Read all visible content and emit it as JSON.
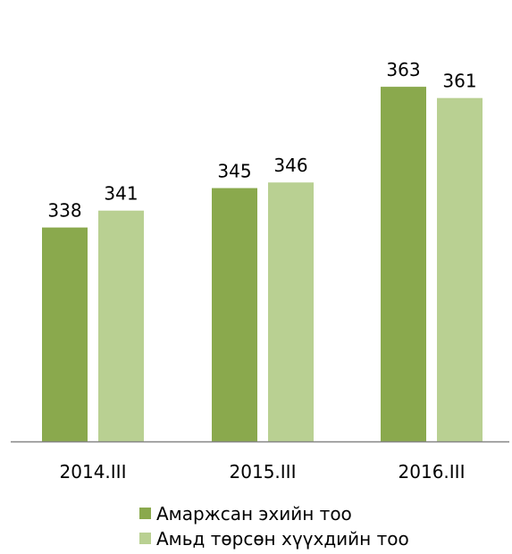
{
  "chart_data": {
    "type": "bar",
    "categories": [
      "2014.III",
      "2015.III",
      "2016.III"
    ],
    "series": [
      {
        "name": "Амаржсан эхийн тоо",
        "values": [
          338,
          345,
          363
        ],
        "color": "#8aa94d"
      },
      {
        "name": "Амьд төрсөн хүүхдийн тоо",
        "values": [
          341,
          346,
          361
        ],
        "color": "#b9d092"
      }
    ],
    "title": "",
    "xlabel": "",
    "ylabel": "",
    "ylim": [
      300,
      370
    ],
    "grid": false,
    "legend": "bottom",
    "axis_color": "#868686"
  }
}
